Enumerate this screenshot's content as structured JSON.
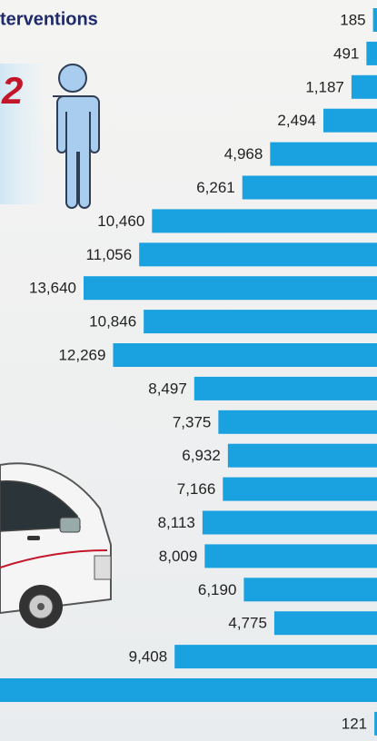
{
  "chart_data": {
    "type": "bar",
    "orientation": "horizontal",
    "title": "terventions",
    "highlight_number": "2",
    "color": "#1aa1e0",
    "values": [
      185,
      491,
      1187,
      2494,
      4968,
      6261,
      10460,
      11056,
      13640,
      10846,
      12269,
      8497,
      7375,
      6932,
      7166,
      8113,
      8009,
      6190,
      4775,
      9408,
      17600,
      121
    ],
    "value_labels": [
      "185",
      "491",
      "1,187",
      "2,494",
      "4,968",
      "6,261",
      "10,460",
      "11,056",
      "13,640",
      "10,846",
      "12,269",
      "8,497",
      "7,375",
      "6,932",
      "7,166",
      "8,113",
      "8,009",
      "6,190",
      "4,775",
      "9,408",
      null,
      "121"
    ]
  }
}
